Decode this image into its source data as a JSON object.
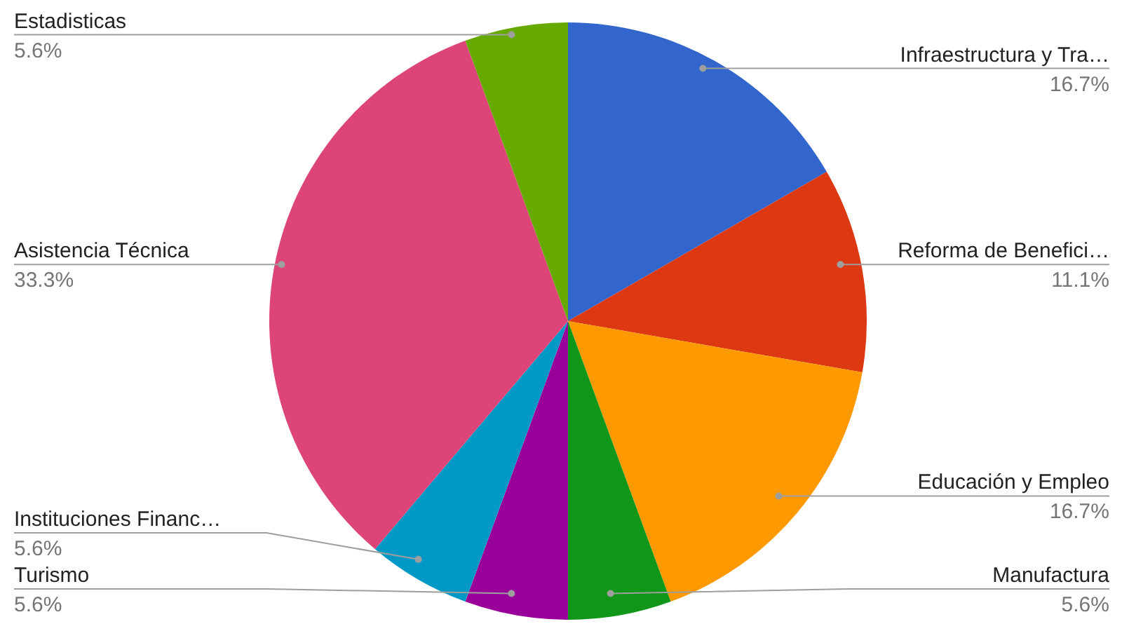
{
  "chart_data": {
    "type": "pie",
    "categories": [
      "Infraestructura y Tra…",
      "Reforma de Benefici…",
      "Educación y Empleo",
      "Manufactura",
      "Turismo",
      "Instituciones Financ…",
      "Asistencia Técnica",
      "Estadisticas"
    ],
    "values": [
      16.7,
      11.1,
      16.7,
      5.6,
      5.6,
      5.6,
      33.3,
      5.6
    ],
    "value_labels": [
      "16.7%",
      "11.1%",
      "16.7%",
      "5.6%",
      "5.6%",
      "5.6%",
      "33.3%",
      "5.6%"
    ],
    "colors": [
      "#3366cc",
      "#dc3912",
      "#ff9900",
      "#109618",
      "#990099",
      "#0099c6",
      "#dd4477",
      "#66aa00"
    ]
  }
}
